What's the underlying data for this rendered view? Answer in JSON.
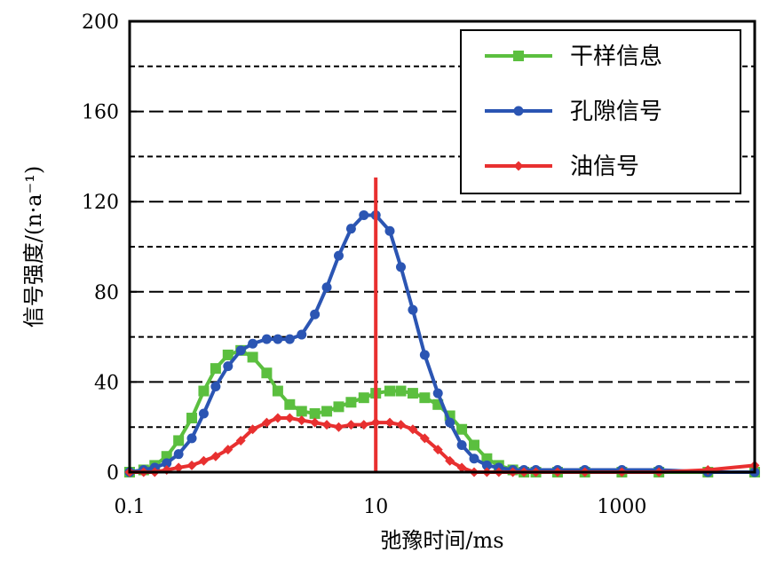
{
  "chart_data": {
    "type": "line",
    "title": "",
    "xlabel": "弛豫时间/ms",
    "ylabel": "信号强度/(n·a⁻¹)",
    "x_scale": "log",
    "xlim": [
      0.1,
      12000
    ],
    "ylim": [
      0,
      200
    ],
    "x_ticks": [
      "0.1",
      "10",
      "1000"
    ],
    "y_ticks": [
      "0",
      "40",
      "80",
      "120",
      "160",
      "200"
    ],
    "grid": "horizontal dashed lines every 20",
    "legend_position": "top-right",
    "reference_line": {
      "x": 10,
      "color": "#e83030"
    },
    "series": [
      {
        "name": "干样信息",
        "color": "#5bbf3f",
        "marker": "square",
        "x": [
          0.1,
          0.13,
          0.16,
          0.2,
          0.25,
          0.32,
          0.4,
          0.5,
          0.63,
          0.8,
          1.0,
          1.3,
          1.6,
          2.0,
          2.5,
          3.2,
          4.0,
          5.0,
          6.3,
          8.0,
          10,
          13,
          16,
          20,
          25,
          32,
          40,
          50,
          63,
          80,
          100,
          130,
          160,
          200,
          300,
          500,
          1000,
          2000,
          5000,
          12000
        ],
        "y": [
          0,
          1,
          3,
          7,
          14,
          24,
          36,
          46,
          52,
          54,
          51,
          44,
          36,
          30,
          27,
          26,
          27,
          29,
          31,
          33,
          35,
          36,
          36,
          35,
          33,
          30,
          25,
          19,
          12,
          6,
          3,
          1,
          0,
          0,
          0,
          0,
          0,
          0,
          0,
          0
        ]
      },
      {
        "name": "孔隙信号",
        "color": "#2b55b3",
        "marker": "circle",
        "x": [
          0.1,
          0.13,
          0.16,
          0.2,
          0.25,
          0.32,
          0.4,
          0.5,
          0.63,
          0.8,
          1.0,
          1.3,
          1.6,
          2.0,
          2.5,
          3.2,
          4.0,
          5.0,
          6.3,
          8.0,
          10,
          13,
          16,
          20,
          25,
          32,
          40,
          50,
          63,
          80,
          100,
          130,
          160,
          200,
          300,
          500,
          1000,
          2000,
          5000,
          12000
        ],
        "y": [
          0,
          1,
          2,
          4,
          8,
          15,
          26,
          38,
          47,
          54,
          57,
          59,
          59,
          59,
          61,
          70,
          82,
          96,
          108,
          114,
          114,
          107,
          91,
          72,
          52,
          35,
          22,
          12,
          6,
          3,
          2,
          1,
          1,
          1,
          1,
          1,
          1,
          1,
          0,
          0
        ]
      },
      {
        "name": "油信号",
        "color": "#e83030",
        "marker": "diamond",
        "x": [
          0.1,
          0.13,
          0.16,
          0.2,
          0.25,
          0.32,
          0.4,
          0.5,
          0.63,
          0.8,
          1.0,
          1.3,
          1.6,
          2.0,
          2.5,
          3.2,
          4.0,
          5.0,
          6.3,
          8.0,
          10,
          13,
          16,
          20,
          25,
          32,
          40,
          50,
          63,
          80,
          100,
          130,
          160,
          200,
          300,
          500,
          1000,
          2000,
          5000,
          12000
        ],
        "y": [
          0,
          0,
          0,
          1,
          2,
          3,
          5,
          7,
          10,
          14,
          19,
          22,
          24,
          24,
          23,
          22,
          21,
          20,
          21,
          21,
          22,
          22,
          21,
          19,
          15,
          10,
          5,
          2,
          0,
          0,
          0,
          0,
          0,
          0,
          0,
          0,
          0,
          0,
          1,
          3
        ]
      }
    ]
  }
}
